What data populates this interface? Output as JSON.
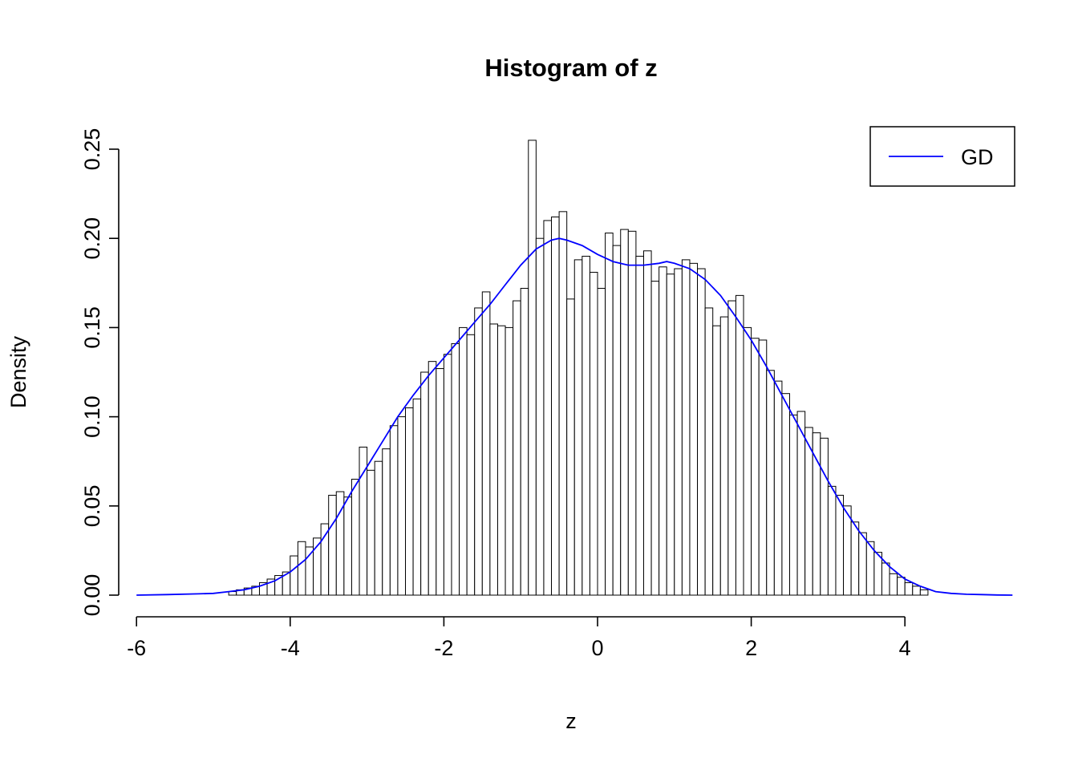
{
  "chart_data": {
    "type": "bar",
    "subtype": "histogram-with-density",
    "title": "Histogram of z",
    "xlabel": "z",
    "ylabel": "Density",
    "xlim": [
      -6.2,
      5.5
    ],
    "ylim": [
      0,
      0.26
    ],
    "grid": false,
    "x_ticks": [
      {
        "value": -6,
        "label": "-6"
      },
      {
        "value": -4,
        "label": "-4"
      },
      {
        "value": -2,
        "label": "-2"
      },
      {
        "value": 0,
        "label": "0"
      },
      {
        "value": 2,
        "label": "2"
      },
      {
        "value": 4,
        "label": "4"
      }
    ],
    "y_ticks": [
      {
        "value": 0.0,
        "label": "0.00"
      },
      {
        "value": 0.05,
        "label": "0.05"
      },
      {
        "value": 0.1,
        "label": "0.10"
      },
      {
        "value": 0.15,
        "label": "0.15"
      },
      {
        "value": 0.2,
        "label": "0.20"
      },
      {
        "value": 0.25,
        "label": "0.25"
      }
    ],
    "bar_fill": "#ffffff",
    "bar_stroke": "#000000",
    "bins": {
      "start": -4.8,
      "width": 0.1,
      "heights": [
        0.002,
        0.003,
        0.004,
        0.005,
        0.007,
        0.009,
        0.011,
        0.013,
        0.022,
        0.03,
        0.027,
        0.032,
        0.04,
        0.056,
        0.058,
        0.055,
        0.065,
        0.083,
        0.07,
        0.075,
        0.082,
        0.095,
        0.1,
        0.105,
        0.11,
        0.125,
        0.131,
        0.127,
        0.135,
        0.141,
        0.15,
        0.146,
        0.161,
        0.17,
        0.152,
        0.151,
        0.15,
        0.165,
        0.172,
        0.255,
        0.2,
        0.21,
        0.212,
        0.215,
        0.166,
        0.188,
        0.19,
        0.181,
        0.172,
        0.203,
        0.196,
        0.205,
        0.204,
        0.19,
        0.193,
        0.176,
        0.184,
        0.18,
        0.183,
        0.188,
        0.186,
        0.183,
        0.161,
        0.151,
        0.156,
        0.165,
        0.168,
        0.15,
        0.144,
        0.143,
        0.126,
        0.12,
        0.113,
        0.101,
        0.103,
        0.094,
        0.091,
        0.088,
        0.061,
        0.056,
        0.05,
        0.041,
        0.035,
        0.03,
        0.024,
        0.018,
        0.012,
        0.01,
        0.007,
        0.005,
        0.003
      ]
    },
    "series": [
      {
        "name": "GD",
        "type": "line",
        "color": "#0000ff",
        "points": [
          [
            -6.0,
            0.0
          ],
          [
            -5.6,
            0.0003
          ],
          [
            -5.2,
            0.0007
          ],
          [
            -5.0,
            0.001
          ],
          [
            -4.8,
            0.002
          ],
          [
            -4.6,
            0.003
          ],
          [
            -4.4,
            0.005
          ],
          [
            -4.2,
            0.008
          ],
          [
            -4.0,
            0.013
          ],
          [
            -3.8,
            0.02
          ],
          [
            -3.6,
            0.03
          ],
          [
            -3.4,
            0.043
          ],
          [
            -3.2,
            0.058
          ],
          [
            -3.0,
            0.072
          ],
          [
            -2.8,
            0.086
          ],
          [
            -2.6,
            0.1
          ],
          [
            -2.4,
            0.112
          ],
          [
            -2.2,
            0.123
          ],
          [
            -2.0,
            0.133
          ],
          [
            -1.8,
            0.143
          ],
          [
            -1.6,
            0.153
          ],
          [
            -1.4,
            0.163
          ],
          [
            -1.2,
            0.174
          ],
          [
            -1.0,
            0.185
          ],
          [
            -0.8,
            0.194
          ],
          [
            -0.6,
            0.199
          ],
          [
            -0.5,
            0.2
          ],
          [
            -0.4,
            0.199
          ],
          [
            -0.2,
            0.196
          ],
          [
            0.0,
            0.191
          ],
          [
            0.2,
            0.187
          ],
          [
            0.4,
            0.185
          ],
          [
            0.6,
            0.185
          ],
          [
            0.8,
            0.186
          ],
          [
            0.9,
            0.187
          ],
          [
            1.0,
            0.186
          ],
          [
            1.2,
            0.183
          ],
          [
            1.4,
            0.177
          ],
          [
            1.6,
            0.168
          ],
          [
            1.8,
            0.156
          ],
          [
            2.0,
            0.143
          ],
          [
            2.2,
            0.128
          ],
          [
            2.4,
            0.112
          ],
          [
            2.6,
            0.096
          ],
          [
            2.8,
            0.08
          ],
          [
            3.0,
            0.064
          ],
          [
            3.2,
            0.049
          ],
          [
            3.4,
            0.036
          ],
          [
            3.6,
            0.025
          ],
          [
            3.8,
            0.016
          ],
          [
            4.0,
            0.009
          ],
          [
            4.2,
            0.005
          ],
          [
            4.4,
            0.002
          ],
          [
            4.6,
            0.001
          ],
          [
            4.8,
            0.0005
          ],
          [
            5.0,
            0.0003
          ],
          [
            5.2,
            0.0001
          ],
          [
            5.4,
            0.0
          ]
        ]
      }
    ],
    "legend": {
      "position": "top-right",
      "label": "GD",
      "line_color": "#0000ff"
    }
  }
}
